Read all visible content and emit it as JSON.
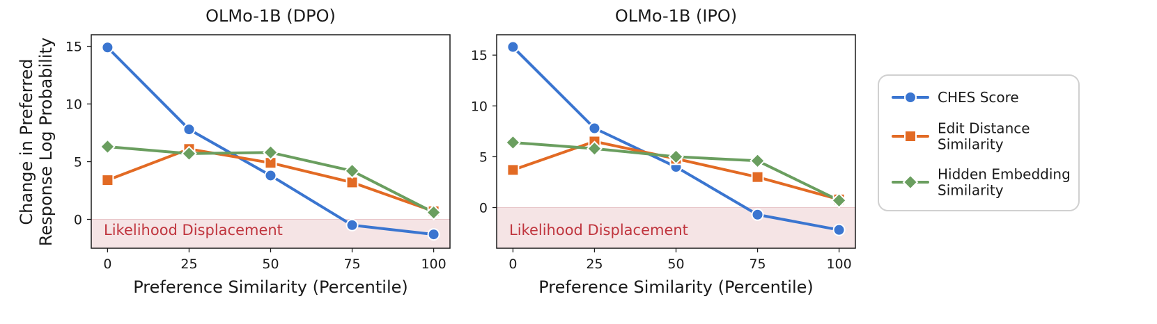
{
  "colors": {
    "ches": "#3a75d0",
    "edit": "#e26a24",
    "hidden": "#6a9e5f",
    "displacement_band": "#f5e4e5",
    "displacement_text": "#c0353e"
  },
  "ylabel_line1": "Change in Preferred",
  "ylabel_line2": "Response Log Probability",
  "chart_data": [
    {
      "type": "line",
      "title": "OLMo-1B  (DPO)",
      "xlabel": "Preference Similarity (Percentile)",
      "ylabel": "Change in Preferred Response Log Probability",
      "x": [
        0,
        25,
        50,
        75,
        100
      ],
      "xlim": [
        -5,
        105
      ],
      "ylim": [
        -2.5,
        16
      ],
      "yticks": [
        0,
        5,
        10,
        15
      ],
      "annotation": "Likelihood Displacement",
      "series": [
        {
          "name": "CHES Score",
          "values": [
            14.9,
            7.8,
            3.8,
            -0.5,
            -1.3
          ]
        },
        {
          "name": "Edit Distance Similarity",
          "values": [
            3.4,
            6.1,
            4.9,
            3.2,
            0.7
          ]
        },
        {
          "name": "Hidden Embedding Similarity",
          "values": [
            6.3,
            5.7,
            5.8,
            4.2,
            0.6
          ]
        }
      ]
    },
    {
      "type": "line",
      "title": "OLMo-1B  (IPO)",
      "xlabel": "Preference Similarity (Percentile)",
      "ylabel": "",
      "x": [
        0,
        25,
        50,
        75,
        100
      ],
      "xlim": [
        -5,
        105
      ],
      "ylim": [
        -4,
        17
      ],
      "yticks": [
        0,
        5,
        10,
        15
      ],
      "annotation": "Likelihood Displacement",
      "series": [
        {
          "name": "CHES Score",
          "values": [
            15.8,
            7.8,
            4.0,
            -0.7,
            -2.2
          ]
        },
        {
          "name": "Edit Distance Similarity",
          "values": [
            3.7,
            6.5,
            4.8,
            3.0,
            0.8
          ]
        },
        {
          "name": "Hidden Embedding Similarity",
          "values": [
            6.4,
            5.8,
            5.0,
            4.6,
            0.7
          ]
        }
      ]
    }
  ],
  "legend": {
    "position": "right",
    "items": [
      {
        "lines": [
          "CHES Score"
        ],
        "marker": "circle",
        "color_key": "ches"
      },
      {
        "lines": [
          "Edit Distance",
          "Similarity"
        ],
        "marker": "square",
        "color_key": "edit"
      },
      {
        "lines": [
          "Hidden Embedding",
          "Similarity"
        ],
        "marker": "diamond",
        "color_key": "hidden"
      }
    ]
  }
}
